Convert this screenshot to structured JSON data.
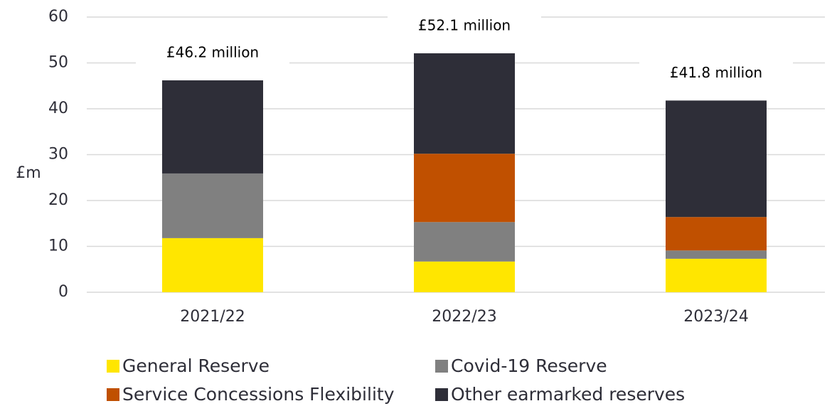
{
  "chart_data": {
    "type": "stacked_bar",
    "y_label": "£m",
    "categories": [
      "2021/22",
      "2022/23",
      "2023/24"
    ],
    "series": [
      {
        "name": "General Reserve",
        "color": "#FFE600",
        "values": [
          11.8,
          6.7,
          7.3
        ]
      },
      {
        "name": "Covid-19 Reserve",
        "color": "#808080",
        "values": [
          14.1,
          8.6,
          1.8
        ]
      },
      {
        "name": "Service Concessions Flexibility",
        "color": "#C05000",
        "values": [
          0,
          14.9,
          7.3
        ]
      },
      {
        "name": "Other earmarked reserves",
        "color": "#2E2E38",
        "values": [
          20.3,
          21.9,
          25.4
        ]
      }
    ],
    "annotations": [
      "£46.2 million",
      "£52.1 million",
      "£41.8 million"
    ],
    "ylim": [
      0,
      60
    ],
    "yticks": [
      0,
      10,
      20,
      30,
      40,
      50,
      60
    ],
    "grid": true
  }
}
